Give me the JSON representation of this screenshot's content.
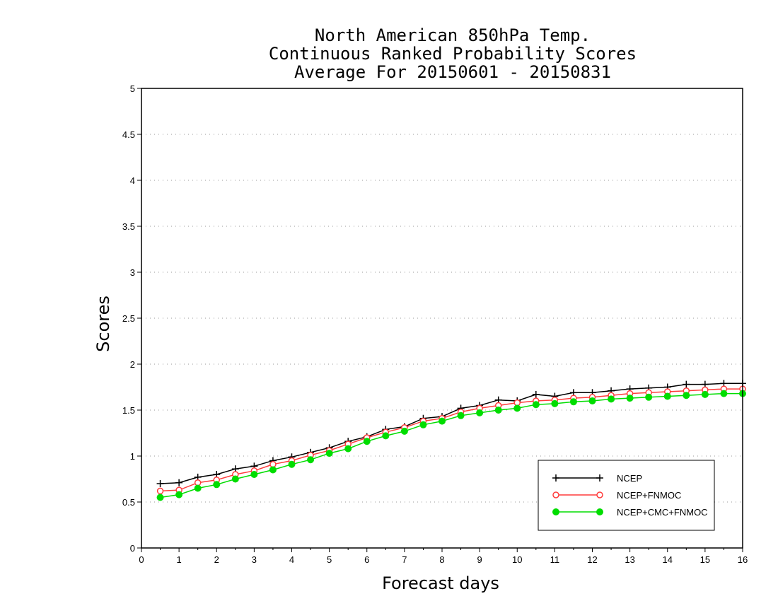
{
  "chart_data": {
    "type": "line",
    "title_lines": [
      "North American 850hPa Temp.",
      "Continuous Ranked Probability Scores",
      "Average For 20150601 - 20150831"
    ],
    "xlabel": "Forecast days",
    "ylabel": "Scores",
    "xlim": [
      0,
      16
    ],
    "ylim": [
      0,
      5
    ],
    "xticks": [
      "0",
      "1",
      "2",
      "3",
      "4",
      "5",
      "6",
      "7",
      "8",
      "9",
      "10",
      "11",
      "12",
      "13",
      "14",
      "15",
      "16"
    ],
    "yticks": [
      "0",
      "0.5",
      "1",
      "1.5",
      "2",
      "2.5",
      "3",
      "3.5",
      "4",
      "4.5",
      "5"
    ],
    "grid": "horizontal-dotted",
    "legend_position": "bottom-right",
    "x": [
      0.5,
      1,
      1.5,
      2,
      2.5,
      3,
      3.5,
      4,
      4.5,
      5,
      5.5,
      6,
      6.5,
      7,
      7.5,
      8,
      8.5,
      9,
      9.5,
      10,
      10.5,
      11,
      11.5,
      12,
      12.5,
      13,
      13.5,
      14,
      14.5,
      15,
      15.5,
      16
    ],
    "series": [
      {
        "name": "NCEP",
        "color": "#000000",
        "marker": "plus",
        "values": [
          0.7,
          0.71,
          0.77,
          0.8,
          0.86,
          0.89,
          0.95,
          0.99,
          1.04,
          1.09,
          1.16,
          1.21,
          1.29,
          1.32,
          1.41,
          1.43,
          1.52,
          1.55,
          1.61,
          1.6,
          1.67,
          1.65,
          1.69,
          1.69,
          1.71,
          1.73,
          1.74,
          1.75,
          1.78,
          1.78,
          1.79,
          1.79
        ]
      },
      {
        "name": "NCEP+FNMOC",
        "color": "#ff3b3b",
        "marker": "open-circle",
        "values": [
          0.62,
          0.63,
          0.71,
          0.74,
          0.8,
          0.84,
          0.91,
          0.95,
          1.01,
          1.06,
          1.13,
          1.2,
          1.26,
          1.31,
          1.38,
          1.41,
          1.48,
          1.52,
          1.55,
          1.58,
          1.6,
          1.61,
          1.63,
          1.64,
          1.66,
          1.68,
          1.69,
          1.7,
          1.71,
          1.72,
          1.73,
          1.73
        ]
      },
      {
        "name": "NCEP+CMC+FNMOC",
        "color": "#00dd00",
        "marker": "filled-circle",
        "values": [
          0.55,
          0.58,
          0.65,
          0.69,
          0.75,
          0.8,
          0.85,
          0.91,
          0.96,
          1.03,
          1.08,
          1.16,
          1.22,
          1.27,
          1.34,
          1.38,
          1.44,
          1.47,
          1.5,
          1.52,
          1.56,
          1.57,
          1.59,
          1.6,
          1.62,
          1.63,
          1.64,
          1.65,
          1.66,
          1.67,
          1.68,
          1.68
        ]
      }
    ]
  }
}
